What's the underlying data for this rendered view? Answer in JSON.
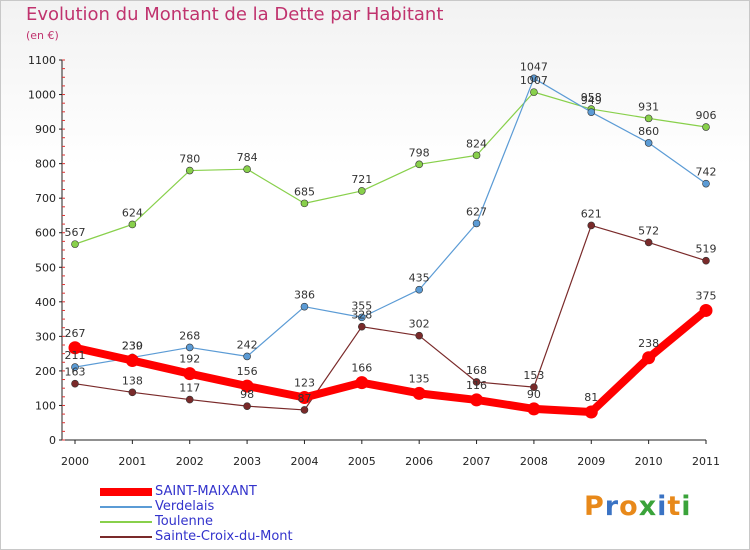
{
  "header": {
    "title": "Evolution du Montant de la Dette par Habitant",
    "subtitle": "(en €)"
  },
  "brand": {
    "text": "Proxiti",
    "colors": [
      "#e8891a",
      "#3a73c4",
      "#e8891a",
      "#3aa33a",
      "#3a73c4",
      "#e8891a",
      "#3aa33a"
    ]
  },
  "chart_data": {
    "type": "line",
    "title": "Evolution du Montant de la Dette par Habitant",
    "subtitle": "(en €)",
    "xlabel": "",
    "ylabel": "",
    "ylim": [
      0,
      1100
    ],
    "yticks": [
      0,
      100,
      200,
      300,
      400,
      500,
      600,
      700,
      800,
      900,
      1000,
      1100
    ],
    "grid": false,
    "legend_position": "bottom-left",
    "x": [
      "2000",
      "2001",
      "2002",
      "2003",
      "2004",
      "2005",
      "2006",
      "2007",
      "2008",
      "2009",
      "2010",
      "2011"
    ],
    "series": [
      {
        "name": "Toulenne",
        "color": "#88d04b",
        "width": 1.2,
        "marker": 3.5,
        "values": [
          567,
          624,
          780,
          784,
          685,
          721,
          798,
          824,
          1007,
          958,
          931,
          906
        ]
      },
      {
        "name": "Verdelais",
        "color": "#5b9bd5",
        "width": 1.2,
        "marker": 3.5,
        "values": [
          211,
          239,
          268,
          242,
          386,
          355,
          435,
          627,
          1047,
          949,
          860,
          742
        ]
      },
      {
        "name": "Sainte-Croix-du-Mont",
        "color": "#7a2a2a",
        "width": 1.2,
        "marker": 3.5,
        "values": [
          163,
          138,
          117,
          98,
          87,
          328,
          302,
          168,
          153,
          621,
          572,
          519
        ]
      },
      {
        "name": "SAINT-MAIXANT",
        "color": "#ff0000",
        "width": 8,
        "marker": 6.5,
        "values": [
          267,
          230,
          192,
          156,
          123,
          166,
          135,
          116,
          90,
          81,
          238,
          375
        ]
      }
    ],
    "legend_order": [
      "SAINT-MAIXANT",
      "Verdelais",
      "Toulenne",
      "Sainte-Croix-du-Mont"
    ]
  }
}
